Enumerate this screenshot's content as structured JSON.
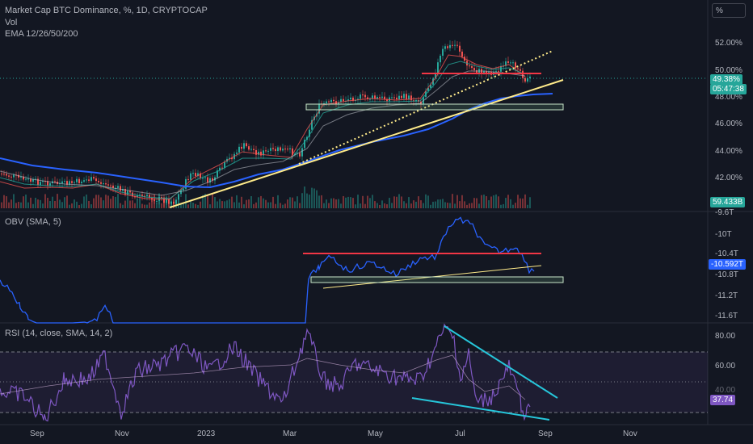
{
  "header": {
    "symbol_line": "Market Cap BTC Dominance, %, 1D, CRYPTOCAP",
    "vol_label": "Vol",
    "ema_label": "EMA 12/26/50/200",
    "scale_button": "%"
  },
  "main_pane": {
    "price_ticks": [
      "52.00%",
      "50.00%",
      "48.00%",
      "46.00%",
      "44.00%",
      "42.00%"
    ],
    "last_price": "49.38%",
    "countdown": "05:47:38",
    "volume_badge": "59.433B",
    "colors": {
      "up": "#26a69a",
      "down": "#ef5350",
      "ema200": "#2962ff",
      "trendline": "#ffeb8a",
      "resistance": "#f23645"
    }
  },
  "obv_pane": {
    "title": "OBV (SMA, 5)",
    "ticks": [
      "-9.6T",
      "-10T",
      "-10.4T",
      "-10.8T",
      "-11.2T",
      "-11.6T"
    ],
    "current_value": "-10.592T",
    "colors": {
      "line": "#2962ff",
      "resistance": "#f23645",
      "support": "#ffeb8a"
    }
  },
  "rsi_pane": {
    "title": "RSI (14, close, SMA, 14, 2)",
    "ticks": [
      "80.00",
      "60.00",
      "40.00"
    ],
    "current_value": "37.74",
    "colors": {
      "line": "#7e57c2",
      "trendline": "#26c6da",
      "band": "#7e57c2"
    }
  },
  "time_axis": {
    "labels": [
      "Sep",
      "Nov",
      "2023",
      "Mar",
      "May",
      "Jul",
      "Sep",
      "Nov"
    ]
  }
}
